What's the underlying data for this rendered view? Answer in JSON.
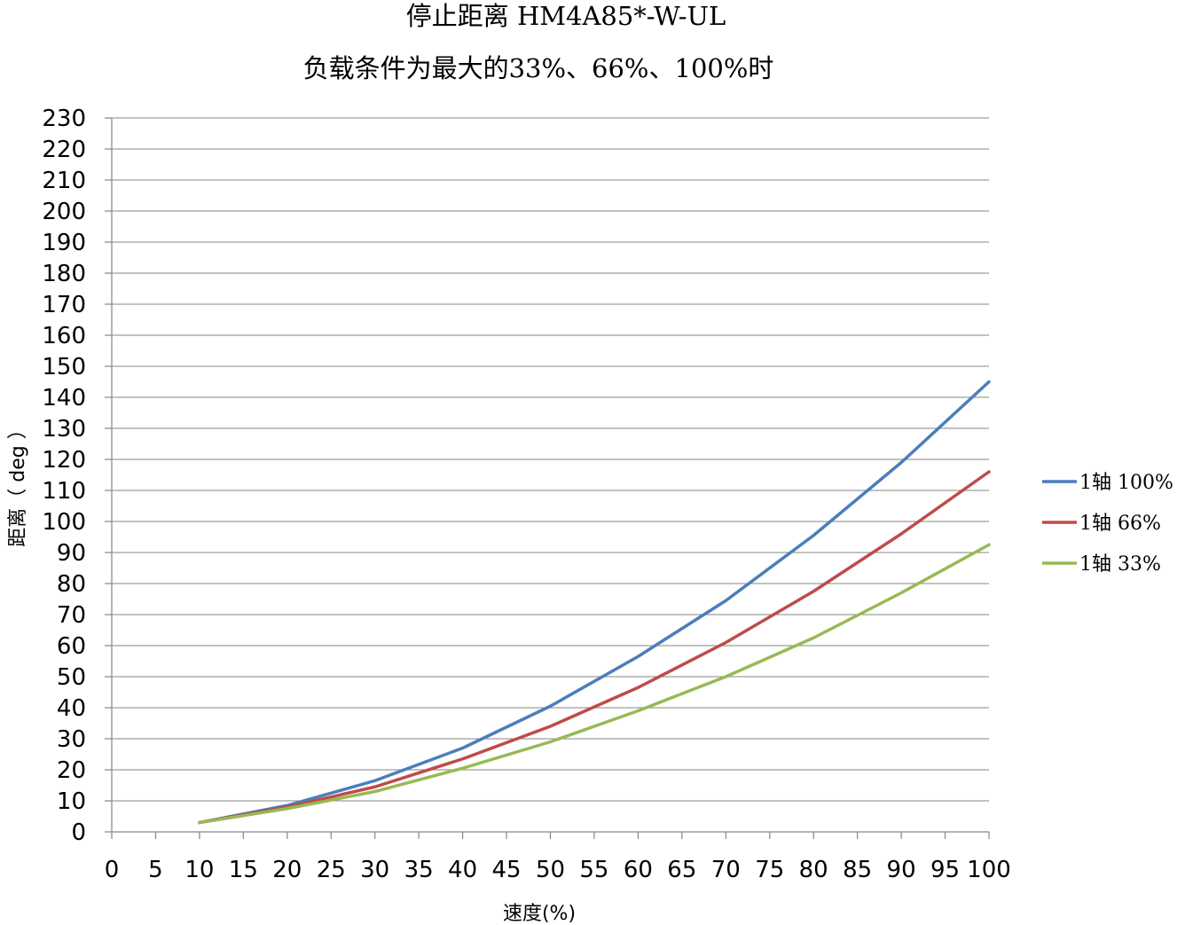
{
  "chart_data": {
    "type": "line",
    "title": "停止距离 HM4A85*-W-UL",
    "subtitle": "负载条件为最大的33%、66%、100%时",
    "xlabel": "速度(%)",
    "ylabel": "距离（ deg ）",
    "xlim": [
      0,
      100
    ],
    "ylim": [
      0,
      230
    ],
    "xticks": [
      0,
      5,
      10,
      15,
      20,
      25,
      30,
      35,
      40,
      45,
      50,
      55,
      60,
      65,
      70,
      75,
      80,
      85,
      90,
      95,
      100
    ],
    "yticks": [
      0,
      10,
      20,
      30,
      40,
      50,
      60,
      70,
      80,
      90,
      100,
      110,
      120,
      130,
      140,
      150,
      160,
      170,
      180,
      190,
      200,
      210,
      220,
      230
    ],
    "grid": true,
    "legend_position": "right",
    "x": [
      10,
      20,
      30,
      40,
      50,
      60,
      70,
      80,
      90,
      100
    ],
    "series": [
      {
        "name": "1轴 100%",
        "color": "#4a7ebb",
        "values": [
          3,
          8.5,
          16.5,
          27,
          40.5,
          56.5,
          74.5,
          95.5,
          119,
          145
        ]
      },
      {
        "name": "1轴 66%",
        "color": "#be4b48",
        "values": [
          3,
          8,
          14.5,
          23.5,
          34,
          46.5,
          61,
          77.5,
          96,
          116
        ]
      },
      {
        "name": "1轴 33%",
        "color": "#98b954",
        "values": [
          3,
          7.5,
          13,
          20.5,
          29,
          39,
          50,
          62.5,
          77,
          92.5
        ]
      }
    ]
  }
}
